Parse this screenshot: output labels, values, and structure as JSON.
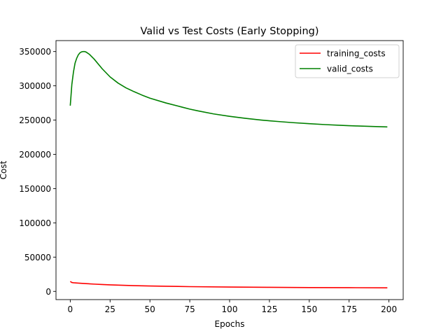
{
  "chart_data": {
    "type": "line",
    "title": "Valid vs Test Costs (Early Stopping)",
    "xlabel": "Epochs",
    "ylabel": "Cost",
    "xlim": [
      -8.95,
      208.95
    ],
    "ylim": [
      -12000,
      366000
    ],
    "xticks": [
      0,
      25,
      50,
      75,
      100,
      125,
      150,
      175,
      200
    ],
    "yticks": [
      0,
      50000,
      100000,
      150000,
      200000,
      250000,
      300000,
      350000
    ],
    "grid": false,
    "legend_position": "top-right",
    "series": [
      {
        "name": "training_costs",
        "color": "#ff0000",
        "x": [
          0,
          1,
          2,
          5,
          10,
          15,
          20,
          25,
          30,
          40,
          50,
          60,
          75,
          100,
          125,
          150,
          175,
          199
        ],
        "y": [
          14500,
          13000,
          12600,
          12100,
          11300,
          10600,
          10000,
          9500,
          9100,
          8400,
          7900,
          7500,
          6900,
          6300,
          5900,
          5600,
          5400,
          5200
        ]
      },
      {
        "name": "valid_costs",
        "color": "#008000",
        "x": [
          0,
          1,
          2,
          3,
          4,
          5,
          6,
          7,
          8,
          9,
          10,
          12,
          15,
          20,
          25,
          30,
          35,
          40,
          45,
          50,
          60,
          70,
          75,
          80,
          90,
          100,
          110,
          120,
          125,
          130,
          140,
          150,
          160,
          170,
          175,
          180,
          190,
          199
        ],
        "y": [
          271000,
          302000,
          320000,
          333000,
          340000,
          345000,
          348000,
          349500,
          350000,
          350000,
          349200,
          346000,
          339000,
          325000,
          313000,
          304000,
          297000,
          291500,
          286500,
          282000,
          275000,
          269000,
          266000,
          263500,
          259000,
          255500,
          252500,
          250000,
          249000,
          248000,
          246200,
          244700,
          243400,
          242300,
          241800,
          241400,
          240700,
          240000
        ]
      }
    ]
  }
}
